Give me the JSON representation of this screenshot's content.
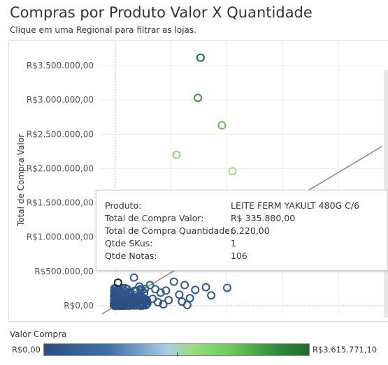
{
  "header": {
    "title": "Compras por Produto Valor X Quantidade",
    "subtitle": "Clique em uma Regional para filtrar as lojas."
  },
  "chart_data": {
    "type": "scatter",
    "ylabel": "Total de Compra Valor",
    "xlabel": "",
    "yticks": [
      "R$0,00",
      "R$500.000,00",
      "R$1.000.000,00",
      "R$1.500.000,00",
      "R$2.000.000,00",
      "R$2.500.000,00",
      "R$3.000.000,00",
      "R$3.500.000,00"
    ],
    "ylim": [
      0,
      3750000
    ],
    "xlim": [
      -0.05,
      1
    ],
    "x_unit_note": "",
    "points": [
      {
        "x": 0.32,
        "y": 3615771
      },
      {
        "x": 0.31,
        "y": 3030000
      },
      {
        "x": 0.4,
        "y": 2630000
      },
      {
        "x": 0.23,
        "y": 2200000
      },
      {
        "x": 0.44,
        "y": 1960000
      },
      {
        "x": 0.01,
        "y": 335880
      },
      {
        "x": 0.07,
        "y": 410000
      },
      {
        "x": 0.09,
        "y": 280000
      },
      {
        "x": 0.13,
        "y": 300000
      },
      {
        "x": 0.15,
        "y": 240000
      },
      {
        "x": 0.17,
        "y": 190000
      },
      {
        "x": 0.19,
        "y": 220000
      },
      {
        "x": 0.22,
        "y": 350000
      },
      {
        "x": 0.24,
        "y": 160000
      },
      {
        "x": 0.26,
        "y": 300000
      },
      {
        "x": 0.28,
        "y": 110000
      },
      {
        "x": 0.3,
        "y": 230000
      },
      {
        "x": 0.34,
        "y": 270000
      },
      {
        "x": 0.36,
        "y": 150000
      },
      {
        "x": 0.42,
        "y": 260000
      },
      {
        "x": 0.03,
        "y": 120000
      },
      {
        "x": 0.05,
        "y": 180000
      },
      {
        "x": 0.04,
        "y": 60000
      },
      {
        "x": 0.02,
        "y": 30000
      },
      {
        "x": 0.06,
        "y": 90000
      },
      {
        "x": 0.08,
        "y": 40000
      },
      {
        "x": 0.1,
        "y": 130000
      },
      {
        "x": 0.11,
        "y": 70000
      },
      {
        "x": 0.12,
        "y": 30000
      },
      {
        "x": 0.14,
        "y": 100000
      },
      {
        "x": 0.16,
        "y": 50000
      },
      {
        "x": 0.18,
        "y": 20000
      },
      {
        "x": 0.2,
        "y": 80000
      },
      {
        "x": 0.25,
        "y": 60000
      },
      {
        "x": 0.27,
        "y": 10000
      }
    ],
    "trend_line": {
      "from": [
        -0.05,
        -120000
      ],
      "to": [
        1,
        2320000
      ]
    },
    "color_legend": {
      "title": "Valor Compra",
      "min_label": "R$0,00",
      "max_label": "R$3.615.771,10",
      "min_value": 0,
      "max_value": 3615771.1
    },
    "tooltip": {
      "rows": [
        {
          "label": "Produto:",
          "value": "LEITE FERM YAKULT 480G C/6"
        },
        {
          "label": "Total de Compra Valor:",
          "value": "R$ 335.880,00"
        },
        {
          "label": "Total de Compra Quantidade:",
          "value": "6.220,00"
        },
        {
          "label": "Qtde SKus:",
          "value": "1"
        },
        {
          "label": "Qtde Notas:",
          "value": "106"
        }
      ]
    }
  }
}
